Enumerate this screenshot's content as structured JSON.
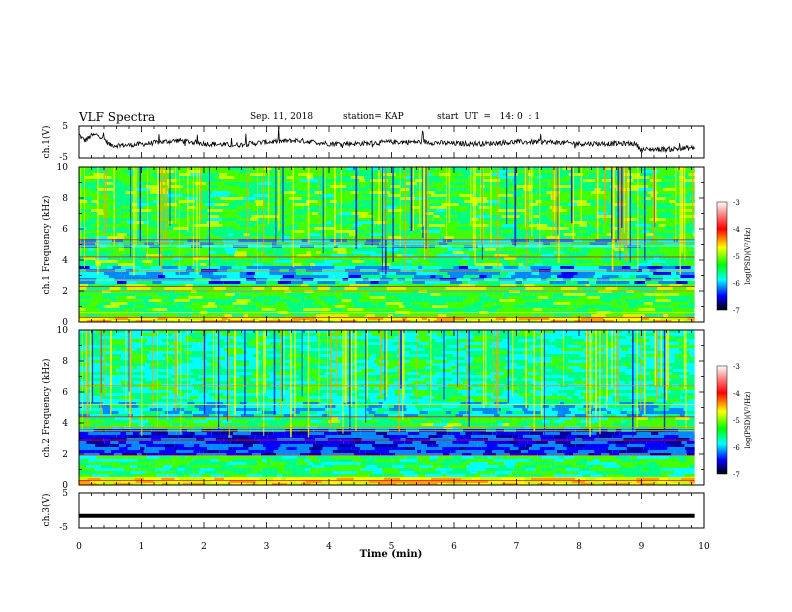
{
  "header": {
    "title": "VLF Spectra",
    "date": "Sep. 11, 2018",
    "station": "station= KAP",
    "start": "start  UT  =   14: 0  : 1"
  },
  "chart_data": [
    {
      "type": "line",
      "panel": "ch1-voltage",
      "ylabel": "ch.1(V)",
      "ylim": [
        -5,
        5
      ],
      "yticks": [
        "5",
        "-5"
      ],
      "xlim": [
        0,
        10
      ],
      "duration_min": 9.85,
      "series": [
        {
          "style": "noisy trace, approximate envelope",
          "t": [
            0,
            0.03,
            0.1,
            0.2,
            0.3,
            0.4,
            0.5,
            0.8,
            1.1,
            1.3,
            1.6,
            2.0,
            2.5,
            3.0,
            3.5,
            4.0,
            4.5,
            5.0,
            5.5,
            6.0,
            6.5,
            7.0,
            7.5,
            8.0,
            8.5,
            8.9,
            9.0,
            9.1,
            9.5,
            9.85
          ],
          "v": [
            2.5,
            1.5,
            0.5,
            2.0,
            2.3,
            1.0,
            -1.0,
            -1.0,
            -0.5,
            0.0,
            0.5,
            -0.5,
            -1.0,
            0.0,
            0.5,
            -0.5,
            -0.5,
            0.0,
            0.0,
            -0.5,
            -0.5,
            0.0,
            0.0,
            -0.5,
            -0.5,
            -0.5,
            -2.5,
            -2.3,
            -2.2,
            -1.8
          ]
        }
      ]
    },
    {
      "type": "heatmap",
      "panel": "ch1-spectrogram",
      "ylabel": "ch.1  Frequency  (kHz)",
      "ylim": [
        0,
        10
      ],
      "yticks": [
        "0",
        "2",
        "4",
        "6",
        "8",
        "10"
      ],
      "xlim": [
        0,
        10
      ],
      "colorbar": {
        "label": "log(PSD)(V²/Hz)",
        "range": [
          -7,
          -3
        ],
        "ticks": [
          "-3",
          "-4",
          "-5",
          "-6",
          "-7"
        ]
      }
    },
    {
      "type": "heatmap",
      "panel": "ch2-spectrogram",
      "ylabel": "ch.2  Frequency  (kHz)",
      "ylim": [
        0,
        10
      ],
      "yticks": [
        "0",
        "2",
        "4",
        "6",
        "8",
        "10"
      ],
      "xlim": [
        0,
        10
      ],
      "colorbar": {
        "label": "log(PSD)(V²/Hz)",
        "range": [
          -7,
          -3
        ],
        "ticks": [
          "-3",
          "-4",
          "-5",
          "-6",
          "-7"
        ]
      }
    },
    {
      "type": "line",
      "panel": "ch3-voltage",
      "ylabel": "ch.3(V)",
      "ylim": [
        -5,
        5
      ],
      "yticks": [
        "5",
        "-5"
      ],
      "xlim": [
        0,
        10
      ],
      "series": [
        {
          "style": "flat thick line",
          "t": [
            0,
            9.85
          ],
          "v": [
            -1.5,
            -1.5
          ]
        }
      ]
    }
  ],
  "xaxis": {
    "label": "Time  (min)",
    "ticks": [
      "0",
      "1",
      "2",
      "3",
      "4",
      "5",
      "6",
      "7",
      "8",
      "9",
      "10"
    ]
  }
}
